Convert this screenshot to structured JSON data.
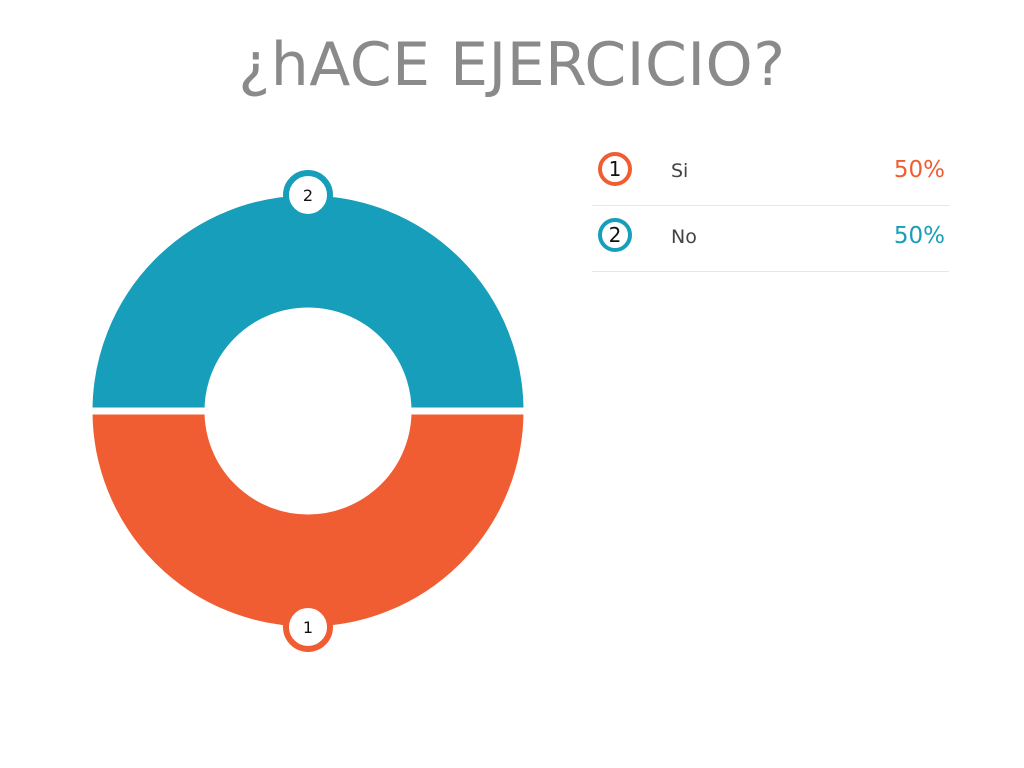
{
  "chart_data": {
    "type": "pie",
    "title": "¿hACE EJERCICIO?",
    "categories": [
      "Si",
      "No"
    ],
    "ranks": [
      "1",
      "2"
    ],
    "values": [
      50,
      50
    ],
    "value_labels": [
      "50%",
      "50%"
    ],
    "colors": [
      "#f05d32",
      "#169ebb"
    ],
    "donut": true,
    "legend_position": "right"
  }
}
